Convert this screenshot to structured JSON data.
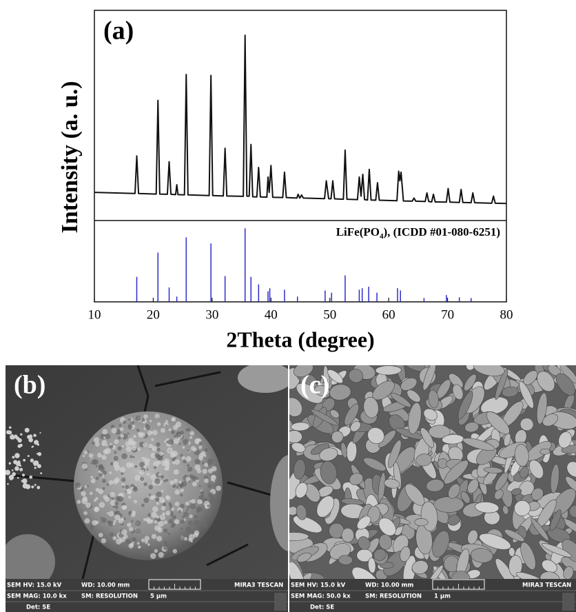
{
  "chart_data": [
    {
      "type": "line",
      "annotation": "(a)",
      "y_label": "Intensity (a. u.)",
      "color": "#111111",
      "xlim": [
        10,
        80
      ],
      "ylim": [
        0,
        100
      ],
      "x": [
        10,
        16.9,
        17.2,
        17.5,
        20.5,
        20.8,
        21.1,
        22.4,
        22.7,
        23,
        23.8,
        24,
        24.2,
        25.3,
        25.6,
        25.9,
        29.5,
        29.8,
        30.1,
        31.9,
        32.2,
        32.5,
        35.3,
        35.6,
        35.9,
        36.3,
        36.6,
        36.9,
        37.6,
        37.9,
        38.2,
        39.3,
        39.5,
        39.7,
        40,
        40.3,
        42,
        42.3,
        42.6,
        44.4,
        44.6,
        44.9,
        45.2,
        45.5,
        49.1,
        49.4,
        49.8,
        50.2,
        50.5,
        50.8,
        52.3,
        52.6,
        52.9,
        54.7,
        55,
        55.3,
        55.6,
        55.9,
        56.4,
        56.7,
        57,
        57.8,
        58.1,
        58.4,
        61.4,
        61.7,
        61.9,
        62.1,
        62.5,
        64,
        64.3,
        64.6,
        66.2,
        66.5,
        66.8,
        67.3,
        67.6,
        67.9,
        69.8,
        70.1,
        70.4,
        72,
        72.3,
        72.6,
        74,
        74.3,
        74.6,
        77.5,
        77.8,
        78.1,
        80
      ],
      "values": [
        14,
        13.4,
        33,
        13.4,
        13.1,
        62,
        13.1,
        13,
        30,
        13,
        12.8,
        18,
        12.8,
        12.7,
        75.5,
        12.7,
        12.3,
        75,
        12.3,
        12.1,
        37,
        12.1,
        11.9,
        96,
        12,
        12,
        39,
        11.7,
        11.6,
        27,
        11.6,
        11.5,
        22,
        14,
        28,
        11.4,
        11.3,
        24.5,
        11.3,
        11,
        13,
        11,
        12.6,
        11,
        10.7,
        20,
        10.7,
        10.6,
        20,
        10.6,
        10.4,
        36,
        10.4,
        10.2,
        22,
        12,
        23.4,
        10.2,
        10,
        26,
        10,
        9.9,
        19,
        9.9,
        9.6,
        25,
        20,
        24.5,
        9.5,
        9.4,
        11,
        9.4,
        9.2,
        13.7,
        9.2,
        9,
        13,
        9,
        8.9,
        16,
        8.9,
        8.7,
        15.5,
        8.7,
        8.6,
        13.7,
        8.6,
        8.3,
        12,
        8.3,
        8.2
      ]
    },
    {
      "type": "stem",
      "label_parts": [
        "LiFe(PO",
        "4",
        "), (ICDD #01-080-6251)"
      ],
      "x_label": "2Theta (degree)",
      "color": "#2b2bcc",
      "xlim": [
        10,
        80
      ],
      "ylim": [
        0,
        100
      ],
      "xticks": [
        10,
        20,
        30,
        40,
        50,
        60,
        70,
        80
      ],
      "x": [
        17.2,
        20.8,
        22.7,
        24,
        25.6,
        29.8,
        32.2,
        35.6,
        36.6,
        37.9,
        39.5,
        39.8,
        42.3,
        44.5,
        49.2,
        50.3,
        52.6,
        55,
        55.5,
        56.6,
        58,
        61.5,
        62,
        66,
        69.8,
        72,
        74
      ],
      "values": [
        33,
        65,
        19,
        7,
        85,
        77,
        34,
        97,
        33,
        23,
        14,
        18,
        16,
        7,
        15,
        12,
        35,
        16,
        18,
        20,
        12,
        18,
        15,
        5,
        9,
        6,
        5
      ]
    }
  ],
  "sem_panels": [
    {
      "label": "(b)",
      "hv": "SEM HV: 15.0 kV",
      "wd": "WD: 10.00 mm",
      "brand": "MIRA3 TESCAN",
      "mag": "SEM MAG: 10.0 kx",
      "mode": "SM: RESOLUTION",
      "scale": "5 μm",
      "det": "Det: SE"
    },
    {
      "label": "(c)",
      "hv": "SEM HV: 15.0 kV",
      "wd": "WD: 10.00 mm",
      "brand": "MIRA3 TESCAN",
      "mag": "SEM MAG: 50.0 kx",
      "mode": "SM: RESOLUTION",
      "scale": "1 μm",
      "det": "Det: SE"
    }
  ]
}
